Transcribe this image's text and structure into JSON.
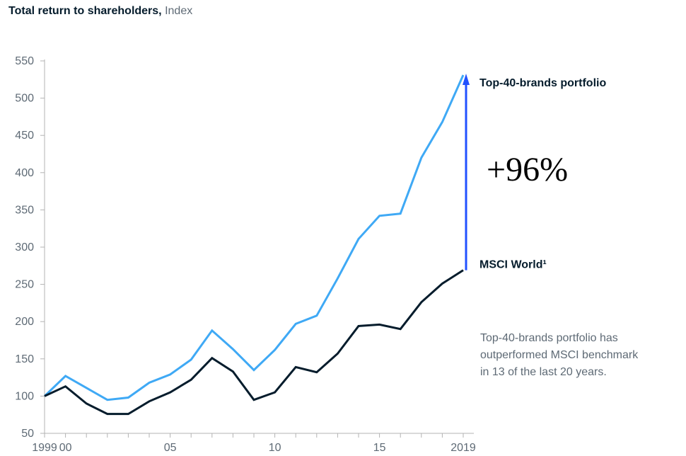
{
  "header": {
    "title": "Total return to shareholders,",
    "unit": "Index"
  },
  "note": {
    "lines": [
      "Top-40-brands portfolio has",
      "outperformed MSCI benchmark",
      "in 13 of the last 20 years."
    ]
  },
  "chart_data": {
    "type": "line",
    "title": "Total return to shareholders, Index",
    "xlabel": "",
    "ylabel": "",
    "x": [
      1999,
      2000,
      2001,
      2002,
      2003,
      2004,
      2005,
      2006,
      2007,
      2008,
      2009,
      2010,
      2011,
      2012,
      2013,
      2014,
      2015,
      2016,
      2017,
      2018,
      2019
    ],
    "x_tick_values": [
      1999,
      2000,
      2005,
      2010,
      2015,
      2019
    ],
    "x_tick_labels": [
      "1999",
      "00",
      "05",
      "10",
      "15",
      "2019"
    ],
    "ylim": [
      50,
      550
    ],
    "y_ticks": [
      50,
      100,
      150,
      200,
      250,
      300,
      350,
      400,
      450,
      500,
      550
    ],
    "grid": false,
    "series": [
      {
        "name": "Top-40-brands portfolio",
        "color": "#3fa9f5",
        "values": [
          100,
          127,
          111,
          95,
          98,
          118,
          129,
          149,
          188,
          163,
          135,
          162,
          197,
          208,
          258,
          311,
          342,
          345,
          420,
          468,
          531
        ]
      },
      {
        "name": "MSCI World¹",
        "color": "#051c2c",
        "values": [
          100,
          113,
          90,
          76,
          76,
          93,
          105,
          122,
          151,
          133,
          95,
          105,
          139,
          132,
          157,
          194,
          196,
          190,
          226,
          251,
          269
        ]
      }
    ],
    "annotation": {
      "label": "+96%",
      "arrow_color": "#2251ff",
      "x": 2019,
      "from": 269,
      "to": 531
    }
  }
}
